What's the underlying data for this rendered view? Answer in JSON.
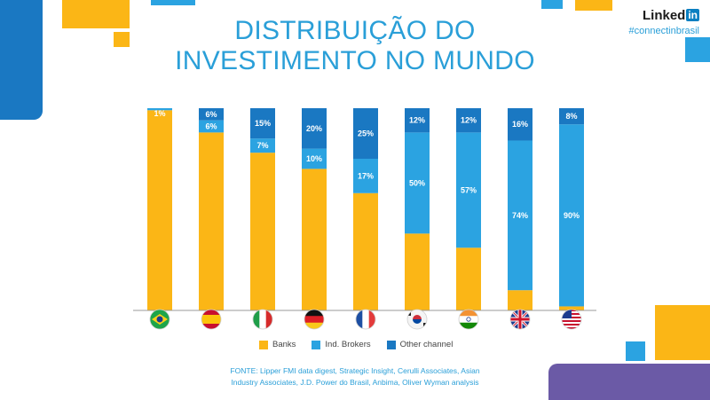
{
  "title": {
    "line1": "DISTRIBUIÇÃO DO",
    "line2": "INVESTIMENTO NO MUNDO"
  },
  "logo": {
    "word": "Linked",
    "in": "in",
    "hashtag": "#connectinbrasil"
  },
  "colors": {
    "banks": "#fbb616",
    "brokers": "#2ba3e1",
    "other": "#1a78c2",
    "accent_blue": "#1a78c2",
    "accent_orange": "#fbb616",
    "accent_purple": "#6b5aa6",
    "title": "#2a9fd8"
  },
  "chart_data": {
    "type": "bar",
    "stacked": true,
    "categories": [
      "Brazil",
      "Spain",
      "Italy",
      "Germany",
      "France",
      "South Korea",
      "India",
      "United Kingdom",
      "United States"
    ],
    "category_icons": [
      "flag-brazil",
      "flag-spain",
      "flag-italy",
      "flag-germany",
      "flag-france",
      "flag-south-korea",
      "flag-india",
      "flag-uk",
      "flag-usa"
    ],
    "series": [
      {
        "name": "Banks",
        "values": [
          99,
          88,
          78,
          70,
          58,
          38,
          31,
          10,
          2
        ]
      },
      {
        "name": "Ind. Brokers",
        "values": [
          1,
          6,
          7,
          10,
          17,
          50,
          57,
          74,
          90
        ]
      },
      {
        "name": "Other channel",
        "values": [
          0,
          6,
          15,
          20,
          25,
          12,
          12,
          16,
          8
        ]
      }
    ],
    "labels": {
      "Ind. Brokers": [
        "1%",
        "6%",
        "7%",
        "10%",
        "17%",
        "50%",
        "57%",
        "74%",
        "90%"
      ],
      "Other channel": [
        "",
        "6%",
        "15%",
        "20%",
        "25%",
        "12%",
        "12%",
        "16%",
        "8%"
      ]
    },
    "ylim": [
      0,
      100
    ],
    "legend_position": "bottom",
    "grid": false
  },
  "legend": [
    {
      "label": "Banks",
      "key": "banks"
    },
    {
      "label": "Ind. Brokers",
      "key": "brokers"
    },
    {
      "label": "Other channel",
      "key": "other"
    }
  ],
  "source": {
    "line1": "FONTE: Lipper FMI data digest, Strategic Insight, Cerulli Associates, Asian",
    "line2": "Industry Associates, J.D. Power do Brasil, Anbima, Oliver Wyman analysis"
  }
}
